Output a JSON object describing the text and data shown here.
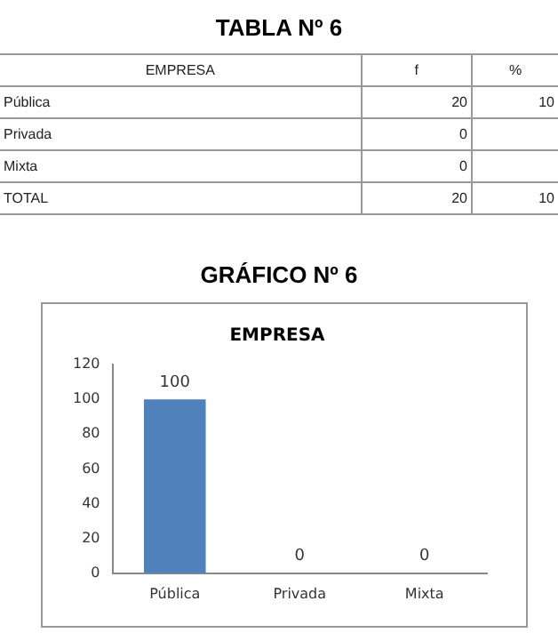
{
  "chart_data": [
    {
      "type": "other",
      "title": "TABLA Nº 6",
      "categories": [
        "EMPRESA",
        "f",
        "%"
      ],
      "annotations": [
        "Pública",
        "20",
        "10",
        "Privada",
        "0",
        null,
        "Mixta",
        "0",
        null,
        "TOTAL",
        "20",
        "10"
      ]
    },
    {
      "type": "bar",
      "title": "GRÁFICO Nº 6",
      "subtitle": "EMPRESA",
      "categories": [
        "Pública",
        "Privada",
        "Mixta"
      ],
      "values": [
        100,
        0,
        0
      ],
      "color": "#4f81bd",
      "ylim": [
        0,
        120
      ],
      "yticks": [
        0,
        20,
        40,
        60,
        80,
        100,
        120
      ],
      "grid": false,
      "legend": false,
      "data_labels": true
    }
  ]
}
